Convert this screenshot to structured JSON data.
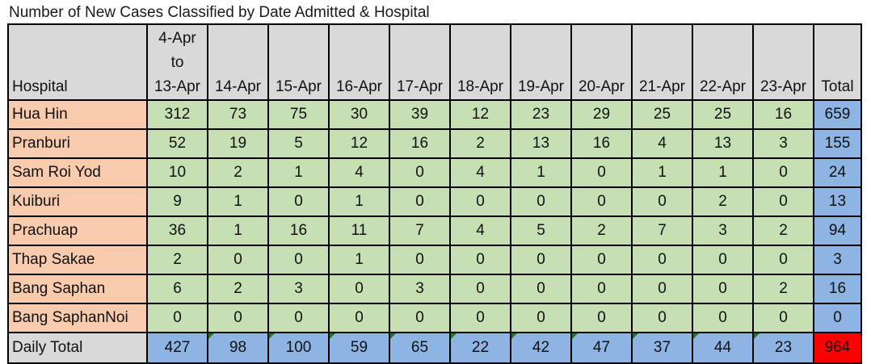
{
  "title": "Number of New Cases Classified by Date Admitted & Hospital",
  "header": {
    "hospital": "Hospital",
    "first_date": [
      "4-Apr",
      "to",
      "13-Apr"
    ],
    "dates": [
      "14-Apr",
      "15-Apr",
      "16-Apr",
      "17-Apr",
      "18-Apr",
      "19-Apr",
      "20-Apr",
      "21-Apr",
      "22-Apr",
      "23-Apr"
    ],
    "total": "Total"
  },
  "rows": [
    {
      "name": "Hua Hin",
      "values": [
        "312",
        "73",
        "75",
        "30",
        "39",
        "12",
        "23",
        "29",
        "25",
        "25",
        "16"
      ],
      "total": "659"
    },
    {
      "name": "Pranburi",
      "values": [
        "52",
        "19",
        "5",
        "12",
        "16",
        "2",
        "13",
        "16",
        "4",
        "13",
        "3"
      ],
      "total": "155"
    },
    {
      "name": "Sam Roi Yod",
      "values": [
        "10",
        "2",
        "1",
        "4",
        "0",
        "4",
        "1",
        "0",
        "1",
        "1",
        "0"
      ],
      "total": "24"
    },
    {
      "name": "Kuiburi",
      "values": [
        "9",
        "1",
        "0",
        "1",
        "0",
        "0",
        "0",
        "0",
        "0",
        "2",
        "0"
      ],
      "total": "13"
    },
    {
      "name": "Prachuap",
      "values": [
        "36",
        "1",
        "16",
        "11",
        "7",
        "4",
        "5",
        "2",
        "7",
        "3",
        "2"
      ],
      "total": "94"
    },
    {
      "name": "Thap Sakae",
      "values": [
        "2",
        "0",
        "0",
        "1",
        "0",
        "0",
        "0",
        "0",
        "0",
        "0",
        "0"
      ],
      "total": "3"
    },
    {
      "name": "Bang Saphan",
      "values": [
        "6",
        "2",
        "3",
        "0",
        "3",
        "0",
        "0",
        "0",
        "0",
        "0",
        "2"
      ],
      "total": "16"
    },
    {
      "name": "Bang SaphanNoi",
      "values": [
        "0",
        "0",
        "0",
        "0",
        "0",
        "0",
        "0",
        "0",
        "0",
        "0",
        "0"
      ],
      "total": "0"
    }
  ],
  "footer": {
    "label": "Daily Total",
    "values": [
      "427",
      "98",
      "100",
      "59",
      "65",
      "22",
      "42",
      "47",
      "37",
      "44",
      "23"
    ],
    "grand_total": "964"
  },
  "colors": {
    "header": "#d9d9d9",
    "hospital_name": "#f8cbad",
    "cell": "#c6e0b4",
    "total": "#8db4e2",
    "grand_total": "#ff0000"
  }
}
